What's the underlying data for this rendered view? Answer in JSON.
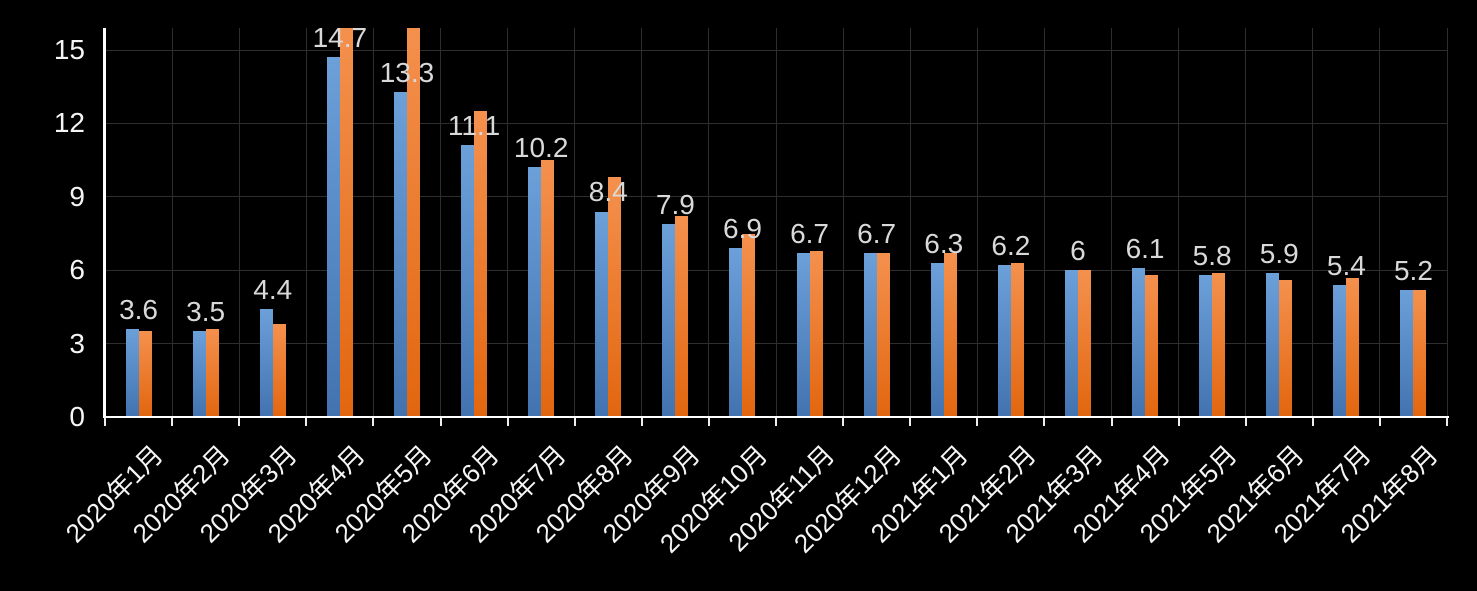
{
  "chart_data": {
    "type": "bar",
    "title": "",
    "xlabel": "",
    "ylabel": "",
    "legend": "none",
    "grid": true,
    "categories": [
      "2020年1月",
      "2020年2月",
      "2020年3月",
      "2020年4月",
      "2020年5月",
      "2020年6月",
      "2020年7月",
      "2020年8月",
      "2020年9月",
      "2020年10月",
      "2020年11月",
      "2020年12月",
      "2021年1月",
      "2021年2月",
      "2021年3月",
      "2021年4月",
      "2021年5月",
      "2021年6月",
      "2021年7月",
      "2021年8月"
    ],
    "series": [
      {
        "name": "series-blue",
        "values": [
          3.6,
          3.5,
          4.4,
          14.7,
          13.3,
          11.1,
          10.2,
          8.4,
          7.9,
          6.9,
          6.7,
          6.7,
          6.3,
          6.2,
          6.0,
          6.1,
          5.8,
          5.9,
          5.4,
          5.2
        ],
        "data_labels": [
          "3.6",
          "3.5",
          "4.4",
          "14.7",
          "13.3",
          "11.1",
          "10.2",
          "8.4",
          "7.9",
          "6.9",
          "6.7",
          "6.7",
          "6.3",
          "6.2",
          "6",
          "6.1",
          "5.8",
          "5.9",
          "5.4",
          "5.2"
        ],
        "color_top": "#6CA0D9",
        "color_bottom": "#4273B0"
      },
      {
        "name": "series-orange",
        "values": [
          3.5,
          3.6,
          3.8,
          16.0,
          16.0,
          12.5,
          10.5,
          9.8,
          8.2,
          7.5,
          6.8,
          6.7,
          6.7,
          6.3,
          6.0,
          5.8,
          5.9,
          5.6,
          5.7,
          5.2
        ],
        "data_labels": [],
        "color_top": "#F4914E",
        "color_bottom": "#E2660F"
      }
    ],
    "yticks": [
      0,
      3,
      6,
      9,
      12,
      15
    ],
    "ytick_labels": [
      "0",
      "3",
      "6",
      "9",
      "12",
      "15"
    ],
    "ylim": [
      0,
      15.9
    ],
    "colors": {
      "background": "#000000",
      "axis_line": "#FFFFFF",
      "gridline": "#2E2E2E",
      "tick_mark": "#EDEDED",
      "axis_label": "#F5F5F5",
      "data_label": "#D9D9D9"
    }
  }
}
